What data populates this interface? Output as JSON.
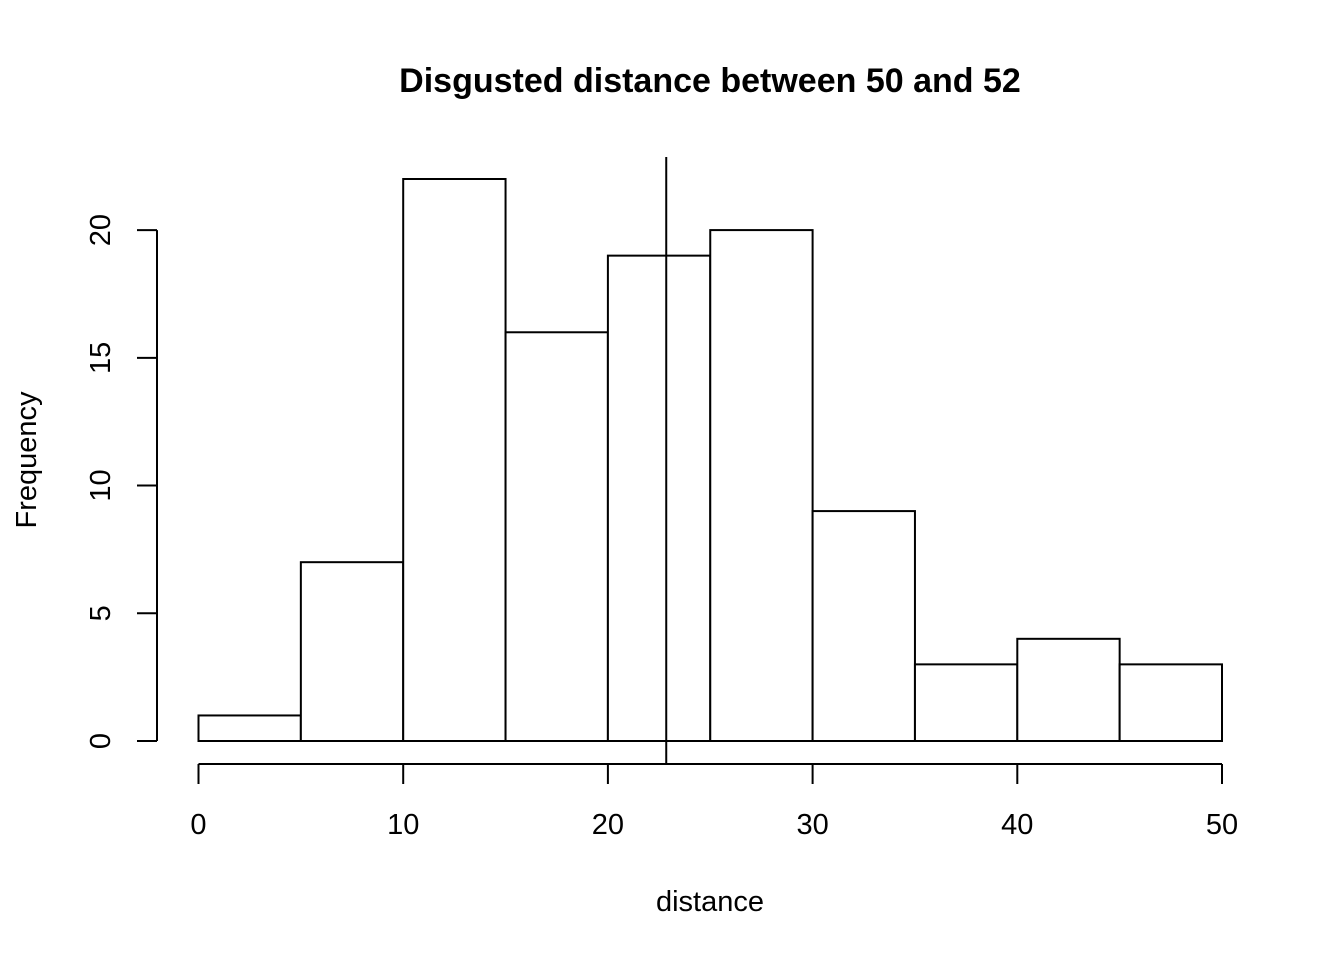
{
  "chart_data": {
    "type": "bar",
    "subtype": "histogram",
    "title": "Disgusted distance between 50 and 52",
    "xlabel": "distance",
    "ylabel": "Frequency",
    "bins": [
      {
        "start": 0,
        "end": 5,
        "count": 1
      },
      {
        "start": 5,
        "end": 10,
        "count": 7
      },
      {
        "start": 10,
        "end": 15,
        "count": 22
      },
      {
        "start": 15,
        "end": 20,
        "count": 16
      },
      {
        "start": 20,
        "end": 25,
        "count": 19
      },
      {
        "start": 25,
        "end": 30,
        "count": 20
      },
      {
        "start": 30,
        "end": 35,
        "count": 9
      },
      {
        "start": 35,
        "end": 40,
        "count": 3
      },
      {
        "start": 40,
        "end": 45,
        "count": 4
      },
      {
        "start": 45,
        "end": 50,
        "count": 3
      }
    ],
    "xlim": [
      0,
      50
    ],
    "ylim": [
      0,
      22
    ],
    "x_ticks": [
      "0",
      "10",
      "20",
      "30",
      "40",
      "50"
    ],
    "y_ticks": [
      "0",
      "5",
      "10",
      "15",
      "20"
    ],
    "reference_line_x": 22.85,
    "grid": false,
    "colors": {
      "bar_fill": "#ffffff",
      "bar_stroke": "#000000",
      "line": "#000000"
    }
  }
}
